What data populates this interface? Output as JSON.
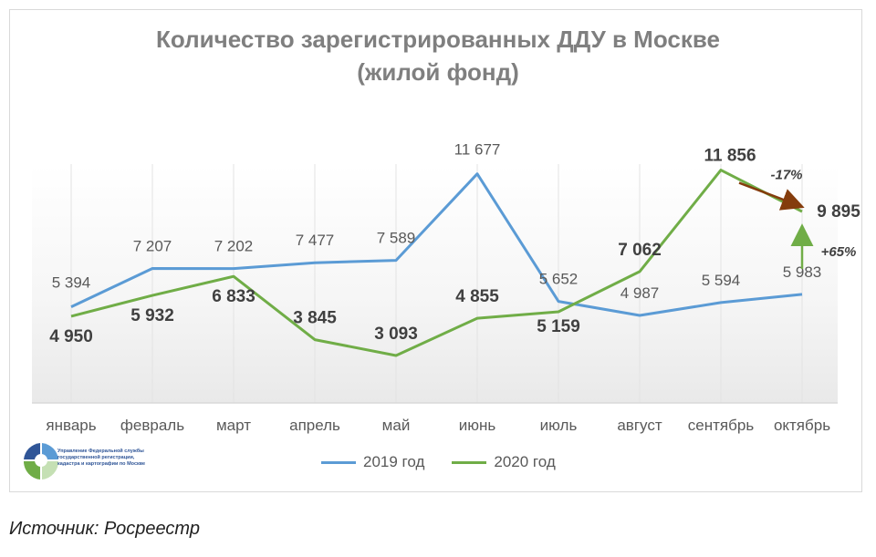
{
  "chart_data": {
    "type": "line",
    "title": "Количество зарегистрированных ДДУ в Москве",
    "subtitle": "(жилой фонд)",
    "categories": [
      "январь",
      "февраль",
      "март",
      "апрель",
      "май",
      "июнь",
      "июль",
      "август",
      "сентябрь",
      "октябрь"
    ],
    "series": [
      {
        "name": "2019 год",
        "color": "#5b9bd5",
        "values": [
          5394,
          7207,
          7202,
          7477,
          7589,
          11677,
          5652,
          4987,
          5594,
          5983
        ],
        "labels": [
          "5 394",
          "7 207",
          "7 202",
          "7 477",
          "7 589",
          "11 677",
          "5 652",
          "4 987",
          "5 594",
          "5 983"
        ]
      },
      {
        "name": "2020 год",
        "color": "#70ad47",
        "values": [
          4950,
          5932,
          6833,
          3845,
          3093,
          4855,
          5159,
          7062,
          11856,
          9895
        ],
        "labels": [
          "4 950",
          "5 932",
          "6 833",
          "3 845",
          "3 093",
          "4 855",
          "5 159",
          "7 062",
          "11 856",
          "9 895"
        ]
      }
    ],
    "annotations": [
      {
        "text": "-17%",
        "arrow_color": "#843c0c"
      },
      {
        "text": "+65%",
        "arrow_color": "#70ad47"
      }
    ],
    "ylim": [
      1500,
      13000
    ],
    "grid": true,
    "legend": "bottom"
  },
  "logo": {
    "text": "Управление Федеральной службы государственной регистрации, кадастра и картографии по Москве"
  },
  "source": "Источник: Росреестр"
}
